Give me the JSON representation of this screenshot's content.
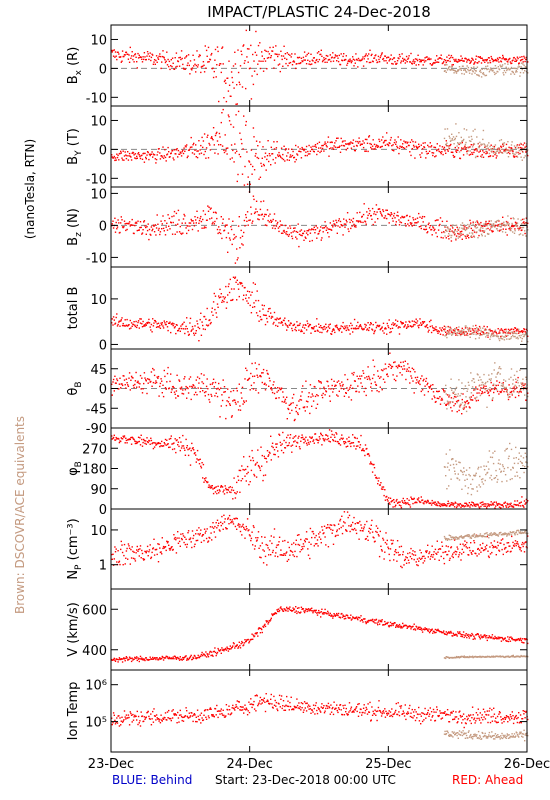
{
  "title": "IMPACT/PLASTIC   24-Dec-2018",
  "units_label": "(nanoTesla, RTN)",
  "brown_label": "Brown: DSCOVR/ACE equivalents",
  "footer": {
    "blue": "BLUE: Behind",
    "start": "Start: 23-Dec-2018 00:00 UTC",
    "red": "RED: Ahead"
  },
  "colors": {
    "ahead": "#ff0000",
    "dscovr": "#c49a80",
    "behind": "#0000c8",
    "axis": "#000000",
    "zero_line": "#888888"
  },
  "time_axis": {
    "ticks": [
      "23-Dec",
      "24-Dec",
      "25-Dec",
      "26-Dec"
    ],
    "range_days": [
      0,
      3
    ]
  },
  "chart_data": [
    {
      "type": "scatter",
      "id": "bx",
      "ylabel": "B",
      "ysub": "x",
      "ysuffix": "(R)",
      "ylim": [
        -13,
        15
      ],
      "yticks": [
        10,
        0,
        -10
      ],
      "zero_line": true,
      "series": [
        {
          "color": "ahead",
          "x": [
            0,
            0.2,
            0.4,
            0.6,
            0.75,
            0.85,
            0.95,
            1.05,
            1.15,
            1.3,
            1.5,
            1.7,
            1.9,
            2.1,
            2.3,
            2.5,
            2.7,
            2.9,
            3.0
          ],
          "y": [
            5,
            4,
            3,
            2,
            1,
            -3,
            4,
            2,
            5,
            3,
            4,
            3,
            4,
            3,
            3,
            3,
            3,
            3,
            3
          ],
          "noise": [
            2,
            2,
            2,
            3,
            6,
            8,
            9,
            6,
            4,
            2,
            1.5,
            1.5,
            1.5,
            1.5,
            1.5,
            1,
            1,
            1,
            1
          ]
        },
        {
          "color": "dscovr",
          "x": [
            2.4,
            2.6,
            2.8,
            3.0
          ],
          "y": [
            0,
            -1,
            0,
            0
          ],
          "noise": [
            1.5,
            1.5,
            1.5,
            1.5
          ]
        }
      ]
    },
    {
      "type": "scatter",
      "id": "by",
      "ylabel": "B",
      "ysub": "Y",
      "ysuffix": "(T)",
      "ylim": [
        -13,
        15
      ],
      "yticks": [
        10,
        0,
        -10
      ],
      "zero_line": true,
      "series": [
        {
          "color": "ahead",
          "x": [
            0,
            0.3,
            0.5,
            0.7,
            0.8,
            0.9,
            1.0,
            1.1,
            1.3,
            1.5,
            1.7,
            1.9,
            2.1,
            2.3,
            2.5,
            2.7,
            3.0
          ],
          "y": [
            -2,
            -2,
            -1,
            2,
            8,
            0,
            -3,
            -2,
            -1,
            1,
            2,
            2,
            2,
            0,
            0,
            0,
            0
          ],
          "noise": [
            1.5,
            1.5,
            2,
            4,
            6,
            9,
            8,
            4,
            2,
            2,
            2,
            2,
            2.5,
            2,
            2,
            2,
            2
          ]
        },
        {
          "color": "dscovr",
          "x": [
            2.4,
            2.6,
            2.8,
            3.0
          ],
          "y": [
            3,
            3,
            0,
            0
          ],
          "noise": [
            3,
            3,
            2,
            2
          ]
        }
      ]
    },
    {
      "type": "scatter",
      "id": "bz",
      "ylabel": "B",
      "ysub": "z",
      "ysuffix": "(N)",
      "ylim": [
        -13,
        12
      ],
      "yticks": [
        10,
        0,
        -10
      ],
      "zero_line": true,
      "series": [
        {
          "color": "ahead",
          "x": [
            0,
            0.3,
            0.5,
            0.7,
            0.8,
            0.9,
            1.0,
            1.1,
            1.3,
            1.5,
            1.7,
            1.9,
            2.1,
            2.3,
            2.5,
            2.7,
            3.0
          ],
          "y": [
            0,
            0,
            1,
            3,
            0,
            -6,
            6,
            3,
            -3,
            -2,
            1,
            4,
            2,
            0,
            -2,
            0,
            0
          ],
          "noise": [
            2,
            2,
            3,
            3,
            4,
            5,
            4,
            3,
            2,
            2,
            2,
            2,
            2,
            2,
            2,
            2,
            2
          ]
        },
        {
          "color": "dscovr",
          "x": [
            2.4,
            2.6,
            2.8,
            3.0
          ],
          "y": [
            -2,
            -1,
            0,
            0
          ],
          "noise": [
            2,
            2,
            2,
            2
          ]
        }
      ]
    },
    {
      "type": "scatter",
      "id": "bt",
      "ylabel": "total B",
      "ysub": "",
      "ysuffix": "",
      "ylim": [
        -1,
        17
      ],
      "yticks": [
        10,
        0
      ],
      "zero_line": false,
      "series": [
        {
          "color": "ahead",
          "x": [
            0,
            0.3,
            0.5,
            0.6,
            0.7,
            0.8,
            0.9,
            1.0,
            1.1,
            1.2,
            1.4,
            1.6,
            1.8,
            2.0,
            2.2,
            2.4,
            2.6,
            2.8,
            3.0
          ],
          "y": [
            5,
            4.5,
            4,
            4,
            6,
            11,
            13,
            10,
            7,
            5,
            4,
            3.5,
            4,
            4,
            5,
            3,
            3,
            3,
            3
          ],
          "noise": [
            1,
            1,
            1,
            2,
            3,
            2,
            2,
            3,
            2,
            1,
            1,
            1,
            1,
            1,
            1,
            0.8,
            0.8,
            0.8,
            0.8
          ]
        },
        {
          "color": "dscovr",
          "x": [
            2.4,
            2.6,
            2.8,
            3.0
          ],
          "y": [
            3,
            3,
            2,
            2
          ],
          "noise": [
            0.8,
            0.8,
            0.8,
            0.8
          ]
        }
      ]
    },
    {
      "type": "scatter",
      "id": "theta",
      "ylabel": "θ",
      "ysub": "B",
      "ysuffix": "",
      "ylim": [
        -90,
        90
      ],
      "yticks": [
        45,
        0,
        -45,
        -90
      ],
      "zero_line": true,
      "series": [
        {
          "color": "ahead",
          "x": [
            0,
            0.3,
            0.5,
            0.7,
            0.8,
            0.9,
            1.0,
            1.1,
            1.3,
            1.5,
            1.7,
            1.9,
            2.1,
            2.3,
            2.5,
            2.7,
            3.0
          ],
          "y": [
            10,
            20,
            0,
            10,
            -20,
            -30,
            20,
            30,
            -40,
            -10,
            10,
            30,
            50,
            0,
            -40,
            0,
            0
          ],
          "noise": [
            15,
            20,
            20,
            25,
            30,
            30,
            30,
            25,
            25,
            20,
            25,
            25,
            20,
            20,
            20,
            15,
            15
          ]
        },
        {
          "color": "dscovr",
          "x": [
            2.4,
            2.6,
            2.8,
            3.0
          ],
          "y": [
            -20,
            0,
            20,
            10
          ],
          "noise": [
            25,
            30,
            30,
            20
          ]
        }
      ]
    },
    {
      "type": "scatter",
      "id": "phi",
      "ylabel": "φ",
      "ysub": "B",
      "ysuffix": "",
      "ylim": [
        0,
        360
      ],
      "yticks": [
        270,
        180,
        90,
        0
      ],
      "zero_line": false,
      "series": [
        {
          "color": "ahead",
          "x": [
            0,
            0.3,
            0.5,
            0.6,
            0.7,
            0.8,
            0.9,
            1.0,
            1.2,
            1.4,
            1.6,
            1.8,
            2.0,
            2.2,
            2.4,
            2.6,
            2.8,
            3.0
          ],
          "y": [
            320,
            300,
            290,
            260,
            100,
            90,
            100,
            180,
            280,
            320,
            320,
            300,
            30,
            40,
            20,
            20,
            20,
            30
          ],
          "noise": [
            15,
            20,
            30,
            40,
            15,
            15,
            50,
            80,
            40,
            20,
            20,
            30,
            15,
            15,
            10,
            10,
            10,
            15
          ]
        },
        {
          "color": "dscovr",
          "x": [
            2.4,
            2.6,
            2.8,
            3.0
          ],
          "y": [
            200,
            120,
            200,
            220
          ],
          "noise": [
            60,
            60,
            60,
            40
          ]
        }
      ]
    },
    {
      "type": "scatter",
      "id": "np",
      "ylabel": "N",
      "ysub": "P",
      "ysuffix": "(cm⁻³)",
      "yscale": "log",
      "ylim": [
        0.2,
        40
      ],
      "yticks": [
        10,
        1
      ],
      "zero_line": false,
      "series": [
        {
          "color": "ahead",
          "x": [
            0,
            0.3,
            0.5,
            0.7,
            0.8,
            0.9,
            1.0,
            1.1,
            1.3,
            1.5,
            1.7,
            1.9,
            2.1,
            2.3,
            2.5,
            2.7,
            3.0
          ],
          "y": [
            2,
            2.5,
            5,
            8,
            20,
            15,
            8,
            3,
            3,
            6,
            20,
            8,
            1.5,
            2,
            3,
            3,
            4
          ],
          "noise": [
            0.25,
            0.25,
            0.25,
            0.2,
            0.2,
            0.2,
            0.25,
            0.3,
            0.3,
            0.3,
            0.25,
            0.3,
            0.25,
            0.2,
            0.2,
            0.2,
            0.2
          ]
        },
        {
          "color": "dscovr",
          "x": [
            2.4,
            2.6,
            2.8,
            3.0
          ],
          "y": [
            6,
            7,
            8,
            9
          ],
          "noise": [
            0.05,
            0.05,
            0.05,
            0.05
          ]
        }
      ]
    },
    {
      "type": "scatter",
      "id": "v",
      "ylabel": "V (km/s)",
      "ysub": "",
      "ysuffix": "",
      "ylim": [
        300,
        700
      ],
      "yticks": [
        600,
        400
      ],
      "zero_line": false,
      "series": [
        {
          "color": "ahead",
          "x": [
            0,
            0.3,
            0.6,
            0.8,
            1.0,
            1.1,
            1.2,
            1.4,
            1.6,
            1.8,
            2.0,
            2.2,
            2.4,
            2.6,
            2.8,
            3.0
          ],
          "y": [
            355,
            360,
            365,
            400,
            450,
            520,
            600,
            600,
            575,
            555,
            530,
            510,
            490,
            470,
            460,
            450
          ],
          "noise": [
            8,
            8,
            10,
            12,
            15,
            15,
            12,
            12,
            10,
            10,
            10,
            10,
            10,
            10,
            10,
            10
          ]
        },
        {
          "color": "dscovr",
          "x": [
            2.4,
            2.6,
            2.8,
            3.0
          ],
          "y": [
            365,
            368,
            370,
            370
          ],
          "noise": [
            3,
            3,
            3,
            3
          ]
        }
      ]
    },
    {
      "type": "scatter",
      "id": "temp",
      "ylabel": "Ion Temp",
      "ysub": "",
      "ysuffix": "",
      "yscale": "log",
      "ylim": [
        15000,
        2500000
      ],
      "yticks": [
        1000000,
        100000
      ],
      "ytick_labels": [
        "10⁶",
        "10⁵"
      ],
      "zero_line": false,
      "series": [
        {
          "color": "ahead",
          "x": [
            0,
            0.3,
            0.6,
            0.8,
            1.0,
            1.1,
            1.3,
            1.5,
            1.7,
            1.9,
            2.1,
            2.3,
            2.5,
            2.7,
            3.0
          ],
          "y": [
            120000,
            140000,
            150000,
            180000,
            300000,
            400000,
            280000,
            250000,
            220000,
            200000,
            180000,
            160000,
            150000,
            150000,
            140000
          ],
          "noise": [
            0.15,
            0.15,
            0.15,
            0.15,
            0.15,
            0.2,
            0.15,
            0.15,
            0.15,
            0.15,
            0.15,
            0.15,
            0.15,
            0.15,
            0.15
          ]
        },
        {
          "color": "dscovr",
          "x": [
            2.4,
            2.6,
            2.8,
            3.0
          ],
          "y": [
            50000,
            45000,
            40000,
            45000
          ],
          "noise": [
            0.08,
            0.08,
            0.08,
            0.08
          ]
        }
      ]
    }
  ]
}
